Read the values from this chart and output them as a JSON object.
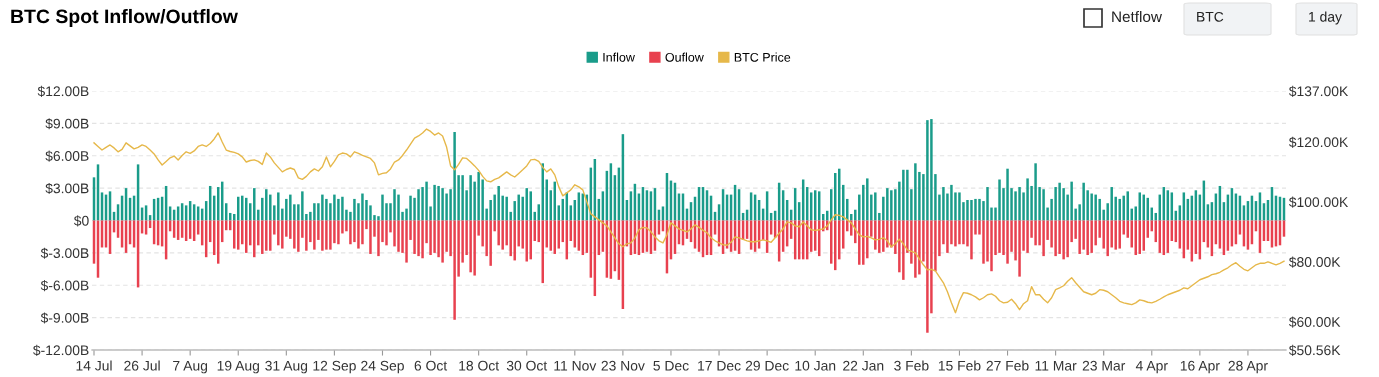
{
  "chart_data": {
    "type": "bar",
    "title": "BTC Spot Inflow/Outflow",
    "annotations": [
      "Netflow",
      "BTC",
      "1 day"
    ],
    "stacked": true,
    "legend": "top",
    "grid": "y",
    "categories": [
      "14 Jul",
      null,
      null,
      null,
      null,
      null,
      null,
      null,
      null,
      null,
      null,
      null,
      "26 Jul",
      null,
      null,
      null,
      null,
      null,
      null,
      null,
      null,
      null,
      null,
      null,
      "7 Aug",
      null,
      null,
      null,
      null,
      null,
      null,
      null,
      null,
      null,
      null,
      null,
      "19 Aug",
      null,
      null,
      null,
      null,
      null,
      null,
      null,
      null,
      null,
      null,
      null,
      "31 Aug",
      null,
      null,
      null,
      null,
      null,
      null,
      null,
      null,
      null,
      null,
      null,
      "12 Sep",
      null,
      null,
      null,
      null,
      null,
      null,
      null,
      null,
      null,
      null,
      null,
      "24 Sep",
      null,
      null,
      null,
      null,
      null,
      null,
      null,
      null,
      null,
      null,
      null,
      "6 Oct",
      null,
      null,
      null,
      null,
      null,
      null,
      null,
      null,
      null,
      null,
      null,
      "18 Oct",
      null,
      null,
      null,
      null,
      null,
      null,
      null,
      null,
      null,
      null,
      null,
      "30 Oct",
      null,
      null,
      null,
      null,
      null,
      null,
      null,
      null,
      null,
      null,
      null,
      "11 Nov",
      null,
      null,
      null,
      null,
      null,
      null,
      null,
      null,
      null,
      null,
      null,
      "23 Nov",
      null,
      null,
      null,
      null,
      null,
      null,
      null,
      null,
      null,
      null,
      null,
      "5 Dec",
      null,
      null,
      null,
      null,
      null,
      null,
      null,
      null,
      null,
      null,
      null,
      "17 Dec",
      null,
      null,
      null,
      null,
      null,
      null,
      null,
      null,
      null,
      null,
      null,
      "29 Dec",
      null,
      null,
      null,
      null,
      null,
      null,
      null,
      null,
      null,
      null,
      null,
      "10 Jan",
      null,
      null,
      null,
      null,
      null,
      null,
      null,
      null,
      null,
      null,
      null,
      "22 Jan",
      null,
      null,
      null,
      null,
      null,
      null,
      null,
      null,
      null,
      null,
      null,
      "3 Feb",
      null,
      null,
      null,
      null,
      null,
      null,
      null,
      null,
      null,
      null,
      null,
      "15 Feb",
      null,
      null,
      null,
      null,
      null,
      null,
      null,
      null,
      null,
      null,
      null,
      "27 Feb",
      null,
      null,
      null,
      null,
      null,
      null,
      null,
      null,
      null,
      null,
      null,
      "11 Mar",
      null,
      null,
      null,
      null,
      null,
      null,
      null,
      null,
      null,
      null,
      null,
      "23 Mar",
      null,
      null,
      null,
      null,
      null,
      null,
      null,
      null,
      null,
      null,
      null,
      "4 Apr",
      null,
      null,
      null,
      null,
      null,
      null,
      null,
      null,
      null,
      null,
      null,
      "16 Apr",
      null,
      null,
      null,
      null,
      null,
      null,
      null,
      null,
      null,
      null,
      null,
      "28 Apr",
      null,
      null,
      null,
      null,
      null,
      null,
      null,
      null,
      null
    ],
    "ylim": [
      -12,
      12
    ],
    "yticks": [
      {
        "value": -12,
        "label": "$-12.00B"
      },
      {
        "value": -9,
        "label": "$-9.00B"
      },
      {
        "value": -6,
        "label": "$-6.00B"
      },
      {
        "value": -3,
        "label": "$-3.00B"
      },
      {
        "value": 0,
        "label": "$0"
      },
      {
        "value": 3,
        "label": "$3.00B"
      },
      {
        "value": 6,
        "label": "$6.00B"
      },
      {
        "value": 9,
        "label": "$9.00B"
      },
      {
        "value": 12,
        "label": "$12.00B"
      }
    ],
    "y2lim": [
      50.56,
      137
    ],
    "y2ticks": [
      {
        "value": 50.56,
        "label": "$50.56K"
      },
      {
        "value": 60,
        "label": "$60.00K"
      },
      {
        "value": 80,
        "label": "$80.00K"
      },
      {
        "value": 100,
        "label": "$100.00K"
      },
      {
        "value": 120,
        "label": "$120.00K"
      },
      {
        "value": 137,
        "label": "$137.00K"
      }
    ],
    "series": [
      {
        "name": "Inflow",
        "color": "#1a9c8a",
        "values": [
          4.0,
          5.2,
          2.6,
          2.4,
          2.7,
          0.8,
          1.5,
          2.3,
          3.0,
          2.1,
          2.3,
          5.2,
          1.2,
          1.4,
          0.5,
          2.0,
          2.1,
          2.2,
          3.2,
          1.3,
          1.0,
          1.3,
          1.6,
          1.4,
          1.8,
          1.5,
          1.3,
          1.1,
          1.8,
          3.2,
          2.3,
          3.1,
          3.6,
          1.6,
          0.7,
          0.6,
          2.2,
          2.3,
          2.1,
          1.6,
          3.0,
          1.0,
          2.1,
          2.9,
          2.4,
          1.4,
          2.6,
          1.1,
          2.0,
          2.4,
          1.5,
          1.5,
          2.7,
          0.6,
          0.8,
          1.6,
          1.6,
          2.4,
          2.0,
          1.6,
          2.4,
          2.0,
          2.2,
          1.0,
          0.8,
          2.0,
          1.6,
          2.5,
          1.9,
          1.4,
          0.5,
          0.4,
          2.4,
          1.6,
          1.6,
          2.9,
          2.4,
          0.8,
          1.1,
          2.3,
          2.1,
          2.9,
          3.1,
          3.6,
          1.3,
          3.3,
          3.2,
          3.0,
          2.5,
          2.9,
          8.2,
          4.2,
          4.2,
          2.8,
          4.2,
          3.6,
          4.5,
          3.8,
          1.1,
          1.9,
          2.4,
          3.2,
          2.3,
          2.2,
          0.8,
          1.8,
          2.4,
          2.2,
          3.0,
          2.7,
          0.8,
          1.5,
          5.3,
          3.8,
          2.8,
          3.6,
          1.4,
          2.0,
          2.6,
          1.4,
          1.9,
          2.6,
          2.5,
          2.4,
          4.9,
          5.7,
          2.0,
          2.7,
          4.6,
          5.3,
          4.2,
          4.9,
          8.0,
          1.9,
          2.7,
          3.4,
          2.5,
          3.1,
          2.8,
          2.7,
          3.0,
          1.0,
          1.3,
          4.4,
          3.7,
          3.5,
          2.5,
          2.5,
          1.1,
          1.7,
          2.2,
          3.1,
          3.1,
          2.8,
          2.3,
          0.8,
          1.5,
          2.9,
          2.4,
          2.4,
          3.3,
          2.9,
          0.7,
          1.0,
          2.6,
          2.4,
          1.9,
          1.1,
          2.7,
          0.7,
          0.9,
          3.5,
          2.8,
          1.9,
          1.0,
          3.0,
          1.7,
          3.8,
          3.1,
          2.6,
          2.8,
          2.7,
          0.6,
          0.9,
          2.9,
          4.4,
          4.8,
          3.3,
          2.0,
          0.6,
          1.0,
          2.4,
          3.3,
          3.9,
          2.4,
          2.6,
          0.7,
          2.2,
          3.0,
          2.8,
          2.9,
          3.6,
          4.7,
          4.7,
          2.9,
          5.3,
          4.5,
          4.3,
          9.3,
          9.4,
          4.3,
          2.4,
          3.1,
          2.5,
          3.3,
          2.6,
          2.6,
          1.7,
          1.9,
          1.9,
          2.0,
          2.0,
          1.8,
          3.1,
          1.2,
          1.2,
          3.8,
          3.0,
          4.8,
          3.0,
          2.7,
          3.1,
          2.6,
          3.9,
          3.2,
          5.3,
          3.1,
          2.9,
          1.2,
          2.0,
          3.1,
          3.5,
          3.0,
          2.4,
          3.6,
          1.1,
          1.5,
          3.5,
          2.8,
          2.5,
          2.4,
          2.0,
          1.0,
          1.6,
          3.1,
          2.2,
          2.0,
          2.3,
          2.7,
          1.1,
          1.3,
          2.6,
          2.4,
          2.1,
          1.2,
          0.7,
          2.4,
          3.1,
          2.8,
          2.6,
          0.9,
          1.4,
          2.6,
          2.0,
          2.3,
          2.8,
          2.4,
          3.7,
          1.5,
          1.7,
          2.5,
          3.2,
          1.7,
          2.4,
          3.0,
          2.5,
          2.3,
          1.4,
          1.8,
          2.3,
          1.8,
          2.6,
          1.6,
          1.9,
          3.1,
          2.3,
          2.2,
          2.1
        ]
      },
      {
        "name": "Ouflow",
        "color": "#e8414f",
        "values": [
          -4.0,
          -5.3,
          -2.5,
          -2.5,
          -3.1,
          -1.1,
          -1.6,
          -2.5,
          -3.0,
          -2.2,
          -2.5,
          -6.2,
          -1.2,
          -1.3,
          -0.7,
          -2.2,
          -2.3,
          -2.4,
          -3.6,
          -1.0,
          -1.6,
          -1.8,
          -1.6,
          -1.9,
          -1.7,
          -1.9,
          -1.3,
          -2.3,
          -3.4,
          -2.0,
          -3.2,
          -4.0,
          -2.0,
          -0.9,
          -0.9,
          -2.6,
          -2.7,
          -2.2,
          -3.0,
          -2.3,
          -3.4,
          -2.3,
          -3.1,
          -2.8,
          -2.8,
          -1.3,
          -2.3,
          -2.6,
          -1.5,
          -1.7,
          -2.6,
          -2.9,
          -1.6,
          -2.8,
          -2.0,
          -2.7,
          -1.8,
          -2.8,
          -2.7,
          -2.7,
          -2.1,
          -2.2,
          -1.2,
          -1.0,
          -2.2,
          -2.0,
          -2.6,
          -2.2,
          -0.8,
          -3.1,
          -1.5,
          -3.3,
          -2.0,
          -2.3,
          -1.1,
          -2.4,
          -2.9,
          -3.0,
          -3.9,
          -1.8,
          -3.1,
          -3.3,
          -3.5,
          -2.1,
          -3.2,
          -3.0,
          -3.4,
          -3.9,
          -2.9,
          -3.3,
          -9.2,
          -5.2,
          -3.9,
          -3.2,
          -4.8,
          -5.1,
          -1.4,
          -2.4,
          -3.3,
          -4.2,
          -1.0,
          -2.3,
          -2.7,
          -2.3,
          -3.3,
          -3.7,
          -2.4,
          -2.6,
          -3.8,
          -3.6,
          -1.9,
          -2.0,
          -5.8,
          -2.5,
          -2.8,
          -3.1,
          -2.6,
          -2.0,
          -3.6,
          -1.9,
          -2.5,
          -2.8,
          -3.2,
          -3.0,
          -5.3,
          -7.0,
          -3.2,
          -2.9,
          -5.3,
          -5.4,
          -4.7,
          -5.5,
          -8.2,
          -2.4,
          -3.2,
          -3.1,
          -3.2,
          -3.0,
          -2.9,
          -3.1,
          -2.8,
          -1.3,
          -1.0,
          -4.9,
          -3.6,
          -3.1,
          -2.2,
          -2.3,
          -1.7,
          -2.0,
          -2.6,
          -2.9,
          -3.4,
          -3.2,
          -3.2,
          -1.3,
          -2.4,
          -3.1,
          -2.6,
          -2.9,
          -2.8,
          -3.1,
          -1.8,
          -1.7,
          -2.7,
          -2.9,
          -2.6,
          -1.8,
          -3.0,
          -1.3,
          -1.6,
          -3.8,
          -2.9,
          -2.4,
          -1.7,
          -3.6,
          -3.6,
          -3.6,
          -3.6,
          -2.9,
          -2.8,
          -3.3,
          -1.0,
          -0.9,
          -4.0,
          -4.6,
          -3.6,
          -2.6,
          -1.0,
          -1.4,
          -2.1,
          -4.1,
          -4.1,
          -3.5,
          -1.5,
          -2.7,
          -3.0,
          -2.9,
          -2.5,
          -2.5,
          -3.1,
          -4.8,
          -5.5,
          -3.0,
          -4.0,
          -5.3,
          -5.0,
          -3.8,
          -10.4,
          -8.6,
          -4.7,
          -3.3,
          -2.2,
          -3.0,
          -2.2,
          -2.4,
          -2.2,
          -2.2,
          -2.4,
          -3.6,
          -1.3,
          -1.3,
          -4.0,
          -3.8,
          -4.7,
          -3.2,
          -3.0,
          -3.2,
          -4.0,
          -2.9,
          -3.7,
          -5.2,
          -2.8,
          -3.0,
          -1.6,
          -2.3,
          -2.3,
          -3.3,
          -1.8,
          -2.5,
          -3.3,
          -3.1,
          -3.6,
          -3.4,
          -2.0,
          -1.7,
          -3.1,
          -2.7,
          -3.2,
          -3.0,
          -2.3,
          -1.6,
          -2.6,
          -3.3,
          -2.5,
          -2.7,
          -2.6,
          -1.3,
          -1.6,
          -2.5,
          -3.2,
          -3.1,
          -2.8,
          -1.6,
          -1.0,
          -2.0,
          -3.0,
          -3.2,
          -3.0,
          -1.9,
          -2.0,
          -2.6,
          -3.5,
          -2.7,
          -3.8,
          -3.1,
          -3.6,
          -2.0,
          -2.5,
          -3.3,
          -2.2,
          -2.6,
          -3.2,
          -2.8,
          -2.4,
          -2.2,
          -1.3,
          -2.4,
          -2.7,
          -2.2,
          -1.0,
          -3.0,
          -1.9,
          -1.9,
          -2.5,
          -2.4,
          -2.3,
          -1.5
        ]
      },
      {
        "name": "BTC Price",
        "type": "line",
        "axis": "y2",
        "color": "#e6b84a",
        "values": [
          119.7,
          118.5,
          117.3,
          118.2,
          119,
          118,
          116.7,
          117.5,
          119.7,
          118.7,
          117.7,
          118.2,
          119,
          118.5,
          117.3,
          116,
          114,
          112.3,
          113.5,
          114.7,
          115.3,
          114,
          115.5,
          116.7,
          116.2,
          117,
          118.5,
          119,
          118.5,
          119.5,
          121,
          123,
          120,
          117.3,
          116.8,
          116.5,
          116,
          115,
          113.3,
          113.8,
          114,
          113.5,
          112.5,
          116.3,
          115,
          113,
          111.5,
          110,
          110.8,
          111.3,
          110.8,
          108,
          107.5,
          108.5,
          110,
          111,
          110.3,
          111.7,
          115,
          111.7,
          113.5,
          115.7,
          116.3,
          116,
          115,
          116.7,
          116.2,
          115.5,
          115,
          114.5,
          113,
          109,
          109.5,
          109.7,
          111,
          113.3,
          114,
          115.5,
          117.3,
          119.3,
          121.3,
          122,
          123,
          124.3,
          123.5,
          122.3,
          123,
          122,
          118.3,
          112,
          110.7,
          112.5,
          114.7,
          114.5,
          113.3,
          112,
          110.5,
          108.5,
          107,
          106.7,
          107.5,
          108,
          109,
          110,
          109,
          108.3,
          109.5,
          110.7,
          112,
          114,
          114.2,
          113.5,
          111.5,
          110,
          111,
          109,
          105,
          102,
          103,
          104,
          105.7,
          105,
          104,
          100,
          96,
          95,
          94,
          93,
          92,
          90,
          88,
          86,
          85,
          86,
          86.3,
          88,
          90.7,
          91.5,
          91.3,
          90,
          88.3,
          87,
          86.3,
          89,
          93,
          92,
          91,
          90.5,
          90,
          91,
          92.3,
          91.5,
          90.5,
          89.7,
          88,
          87,
          86.3,
          85.7,
          85.5,
          86.5,
          88.3,
          88,
          87.5,
          87,
          86.7,
          86.7,
          87,
          87.3,
          87,
          86.5,
          88,
          89.5,
          91,
          93.3,
          93,
          92,
          91.7,
          93.3,
          92,
          90.7,
          90.5,
          90.7,
          91,
          92,
          94,
          95.7,
          95.5,
          95,
          94,
          93,
          91,
          89,
          88.3,
          88.5,
          88,
          87.3,
          87.5,
          88,
          87,
          85,
          86,
          87.5,
          86,
          84,
          83.5,
          83,
          81,
          79,
          77.3,
          77.5,
          77,
          75,
          73,
          70,
          66.3,
          63,
          67,
          69.7,
          69.5,
          69,
          68.3,
          67.3,
          68,
          69,
          69.3,
          68.5,
          67,
          66.3,
          66.5,
          67.5,
          66,
          64,
          66,
          67,
          71.7,
          69,
          69,
          67.5,
          66.3,
          68,
          70.7,
          71.3,
          72,
          73.5,
          74.7,
          73,
          71.5,
          70,
          69.5,
          69,
          69.5,
          70.7,
          70.5,
          70,
          69,
          68,
          66.8,
          66.3,
          66,
          65.7,
          66.3,
          67.3,
          67,
          66.5,
          66.3,
          66.8,
          67.5,
          68.3,
          69,
          69.5,
          70,
          70.5,
          71.3,
          71,
          72,
          73,
          74,
          74.5,
          75,
          75.7,
          76,
          76.5,
          77.3,
          78,
          79,
          79.7,
          78.5,
          77.5,
          77,
          78,
          79,
          79.5,
          79.5,
          80,
          79.5,
          79,
          79.5,
          80.2
        ]
      }
    ]
  }
}
